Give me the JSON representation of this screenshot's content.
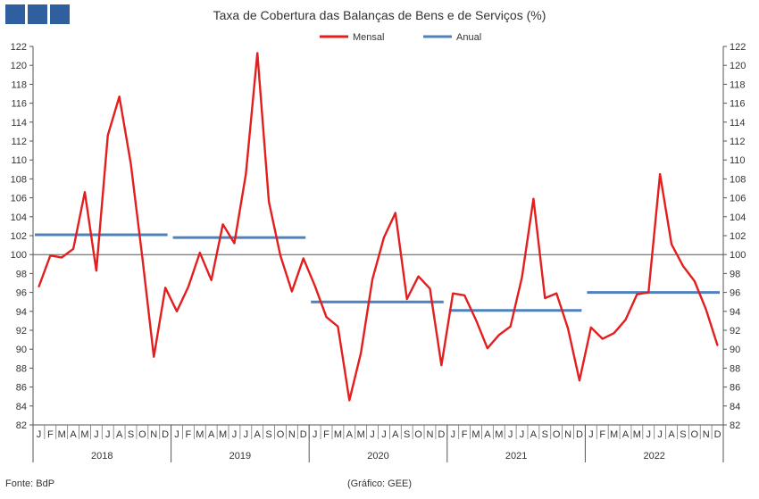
{
  "chart_data": {
    "type": "line",
    "title": "Taxa de Cobertura das Balanças de Bens e de Serviços (%)",
    "ylim": [
      82,
      122
    ],
    "yticks": [
      82,
      84,
      86,
      88,
      90,
      92,
      94,
      96,
      98,
      100,
      102,
      104,
      106,
      108,
      110,
      112,
      114,
      116,
      118,
      120,
      122
    ],
    "reference_line": 100,
    "month_labels": [
      "J",
      "F",
      "M",
      "A",
      "M",
      "J",
      "J",
      "A",
      "S",
      "O",
      "N",
      "D"
    ],
    "years": [
      "2018",
      "2019",
      "2020",
      "2021",
      "2022"
    ],
    "series": [
      {
        "name": "Mensal",
        "color": "#e31e1e",
        "values": [
          96.6,
          99.9,
          99.7,
          100.6,
          106.6,
          98.3,
          112.6,
          116.7,
          109.6,
          99.7,
          89.2,
          96.5,
          94.0,
          96.6,
          100.2,
          97.3,
          103.2,
          101.2,
          108.5,
          121.3,
          105.6,
          99.9,
          96.1,
          99.6,
          96.7,
          93.4,
          92.4,
          84.6,
          89.6,
          97.4,
          101.8,
          104.4,
          95.3,
          97.7,
          96.4,
          88.3,
          95.9,
          95.7,
          93.1,
          90.1,
          91.5,
          92.4,
          97.6,
          105.9,
          95.4,
          95.9,
          92.2,
          86.7,
          92.3,
          91.1,
          91.7,
          93.1,
          95.8,
          96.0,
          108.5,
          101.1,
          98.8,
          97.2,
          94.2,
          90.4
        ]
      },
      {
        "name": "Anual",
        "color": "#4f81bd",
        "values": [
          102.1,
          101.8,
          95.0,
          94.1,
          96.0
        ]
      }
    ],
    "legend_position": "top-center",
    "grid": false
  },
  "footer": {
    "source": "Fonte: BdP",
    "credit": "(Gráfico: GEE)"
  },
  "colors": {
    "logo": "#2f5f9e",
    "axis": "#333333"
  }
}
